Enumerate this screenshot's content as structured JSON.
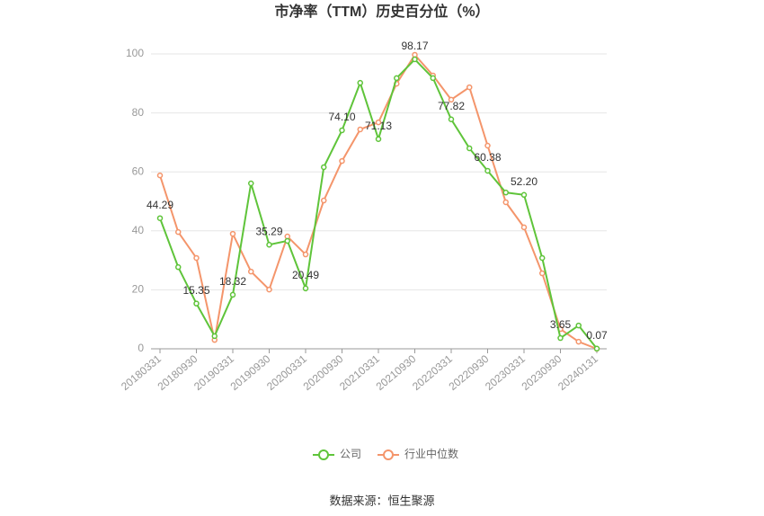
{
  "chart_data": {
    "type": "line",
    "title": "市净率（TTM）历史百分位（%）",
    "categories": [
      "20180331",
      null,
      "20180930",
      null,
      "20190331",
      null,
      "20190930",
      null,
      "20200331",
      null,
      "20200930",
      null,
      "20210331",
      null,
      "20210930",
      null,
      "20220331",
      null,
      "20220930",
      null,
      "20230331",
      null,
      "20230930",
      null,
      "20240131"
    ],
    "series": [
      {
        "name": "公司",
        "color": "#5fc43a",
        "values": [
          44.29,
          27.7,
          15.35,
          4.3,
          18.32,
          56.1,
          35.29,
          36.6,
          20.49,
          61.6,
          74.1,
          90.2,
          71.13,
          91.8,
          98.17,
          91.8,
          77.82,
          68.0,
          60.38,
          53.0,
          52.2,
          30.8,
          3.65,
          7.9,
          0.07
        ],
        "value_labels": [
          "44.29",
          null,
          "15.35",
          null,
          "18.32",
          null,
          "35.29",
          null,
          "20.49",
          null,
          "74.10",
          null,
          "71.13",
          null,
          "98.17",
          null,
          "77.82",
          null,
          "60.38",
          null,
          "52.20",
          null,
          "3.65",
          null,
          "0.07"
        ]
      },
      {
        "name": "行业中位数",
        "color": "#f4956b",
        "values": [
          58.8,
          39.6,
          30.8,
          3.0,
          39.0,
          26.2,
          20.1,
          38.1,
          32.0,
          50.3,
          63.7,
          74.4,
          76.8,
          89.9,
          99.7,
          92.7,
          84.5,
          88.7,
          68.9,
          49.7,
          41.2,
          25.6,
          6.7,
          2.4,
          0
        ]
      }
    ],
    "ylim": [
      0,
      100
    ],
    "yticks": [
      0,
      20,
      40,
      60,
      80,
      100
    ],
    "grid": true,
    "legend": "bottom",
    "source": "数据来源：恒生聚源"
  }
}
